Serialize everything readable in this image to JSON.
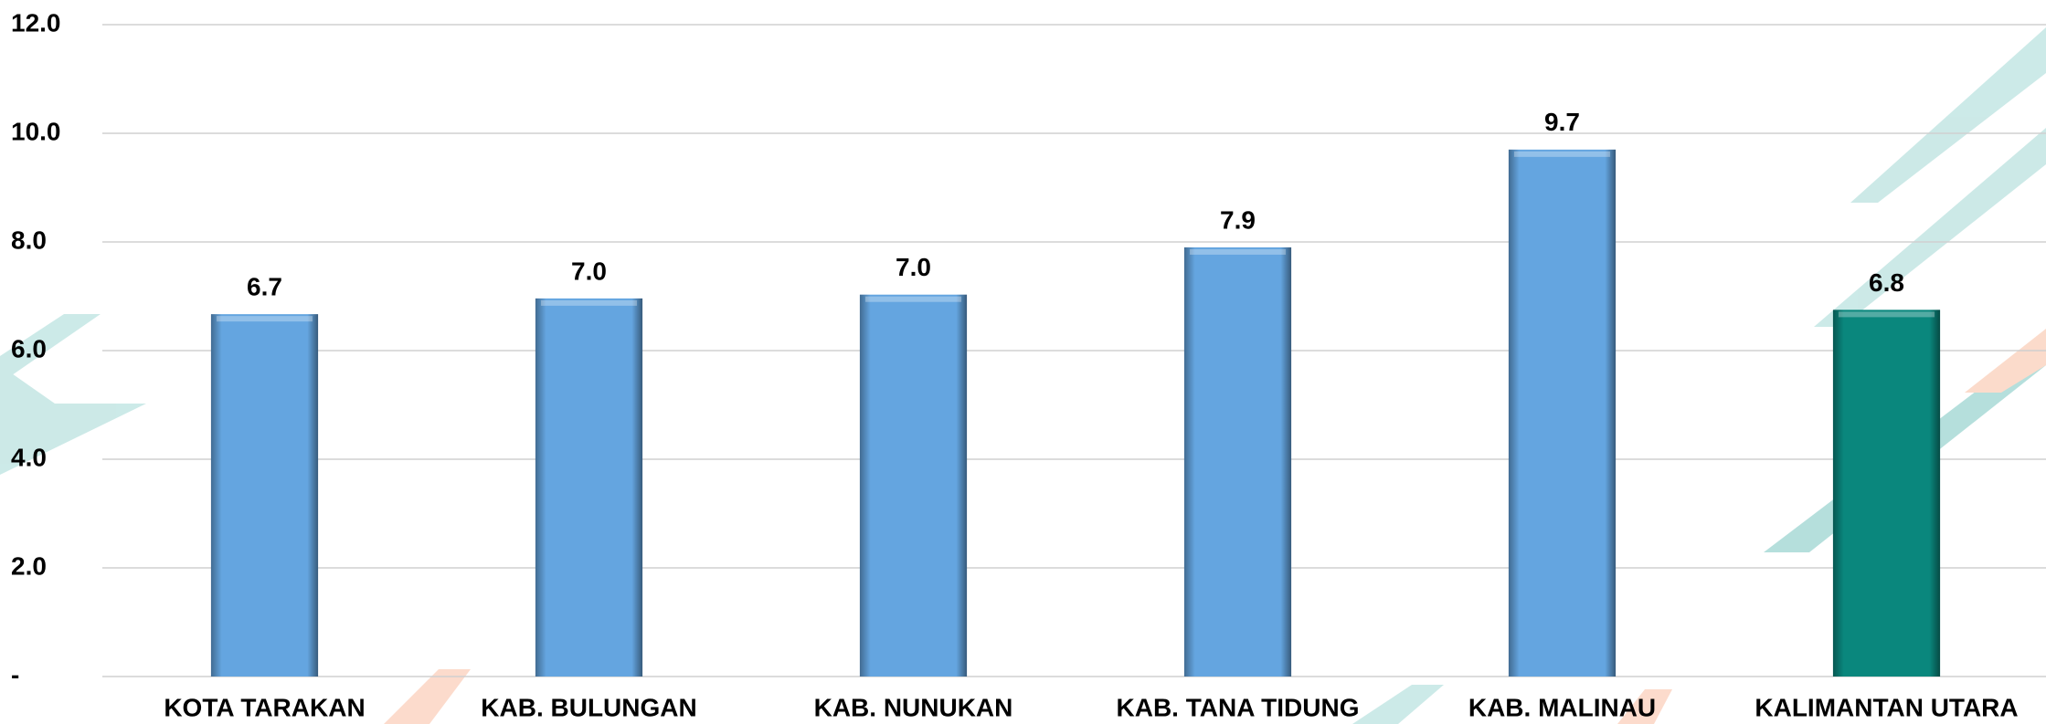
{
  "chart_data": {
    "type": "bar",
    "categories": [
      "KOTA TARAKAN",
      "KAB. BULUNGAN",
      "KAB. NUNUKAN",
      "KAB. TANA TIDUNG",
      "KAB. MALINAU",
      "KALIMANTAN UTARA"
    ],
    "values": [
      6.67,
      6.96,
      7.03,
      7.9,
      9.7,
      6.75
    ],
    "value_labels": [
      "6.7",
      "7.0",
      "7.0",
      "7.9",
      "9.7",
      "6.8"
    ],
    "colors": [
      "#64a5e0",
      "#64a5e0",
      "#64a5e0",
      "#64a5e0",
      "#64a5e0",
      "#0a877d"
    ],
    "ylim": [
      0,
      12
    ],
    "yticks": [
      {
        "value": 0,
        "label": "-"
      },
      {
        "value": 2,
        "label": "2.0"
      },
      {
        "value": 4,
        "label": "4.0"
      },
      {
        "value": 6,
        "label": "6.0"
      },
      {
        "value": 8,
        "label": "8.0"
      },
      {
        "value": 10,
        "label": "10.0"
      },
      {
        "value": 12,
        "label": "12.0"
      }
    ],
    "grid": true
  }
}
